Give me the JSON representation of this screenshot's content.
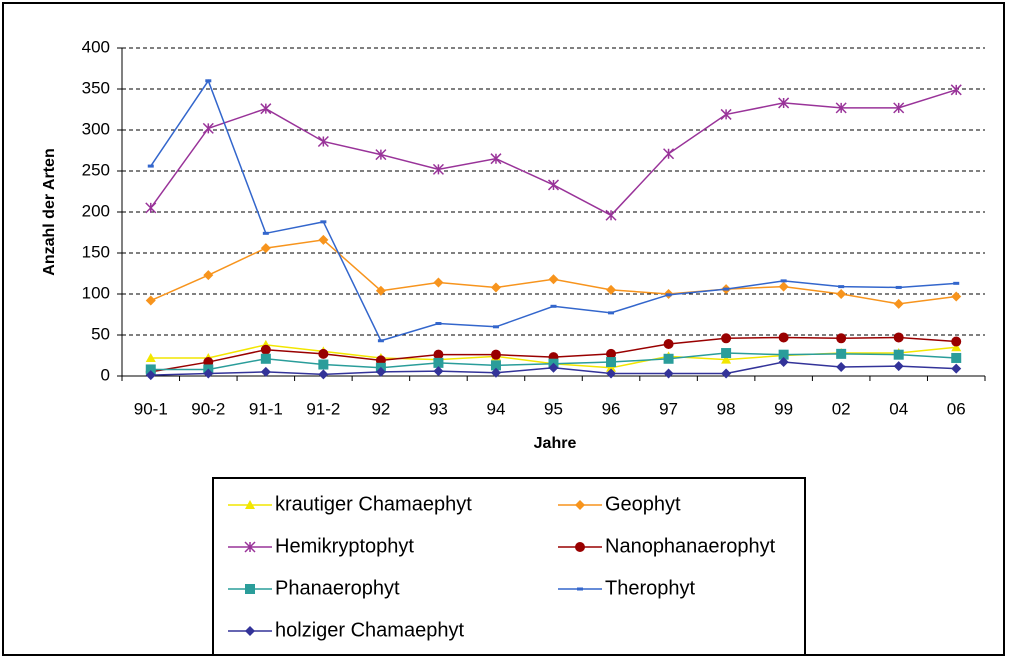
{
  "chart_data": {
    "type": "line",
    "y_label": "Anzahl der Arten",
    "x_label": "Jahre",
    "categories": [
      "90-1",
      "90-2",
      "91-1",
      "91-2",
      "92",
      "93",
      "94",
      "95",
      "96",
      "97",
      "98",
      "99",
      "02",
      "04",
      "06"
    ],
    "ylim": [
      0,
      400
    ],
    "yticks": [
      0,
      50,
      100,
      150,
      200,
      250,
      300,
      350,
      400
    ],
    "grid": true,
    "series": [
      {
        "name": "krautiger Chamaephyt",
        "color": "#f2e600",
        "marker": "triangle",
        "values": [
          22,
          22,
          38,
          30,
          22,
          20,
          24,
          15,
          10,
          24,
          20,
          25,
          28,
          28,
          35
        ]
      },
      {
        "name": "Geophyt",
        "color": "#f7941d",
        "marker": "diamond",
        "values": [
          92,
          123,
          156,
          166,
          104,
          114,
          108,
          118,
          105,
          100,
          106,
          109,
          100,
          88,
          97
        ]
      },
      {
        "name": "Hemikryptophyt",
        "color": "#993399",
        "marker": "asterisk",
        "values": [
          205,
          302,
          326,
          286,
          270,
          252,
          265,
          233,
          196,
          271,
          319,
          333,
          327,
          327,
          349
        ]
      },
      {
        "name": "Nanophanaerophyt",
        "color": "#990000",
        "marker": "circle",
        "values": [
          5,
          17,
          32,
          27,
          19,
          26,
          26,
          23,
          27,
          39,
          46,
          47,
          46,
          47,
          42
        ]
      },
      {
        "name": "Phanaerophyt",
        "color": "#2a9d9a",
        "marker": "square",
        "values": [
          8,
          8,
          21,
          14,
          10,
          16,
          13,
          15,
          17,
          21,
          28,
          26,
          27,
          26,
          22
        ]
      },
      {
        "name": "Therophyt",
        "color": "#3366cc",
        "marker": "dash",
        "values": [
          256,
          360,
          174,
          188,
          43,
          64,
          60,
          85,
          77,
          99,
          106,
          116,
          109,
          108,
          113
        ]
      },
      {
        "name": "holziger Chamaephyt",
        "color": "#333399",
        "marker": "diamond",
        "values": [
          1,
          3,
          5,
          2,
          5,
          6,
          4,
          10,
          3,
          3,
          3,
          17,
          11,
          12,
          9
        ]
      }
    ]
  }
}
